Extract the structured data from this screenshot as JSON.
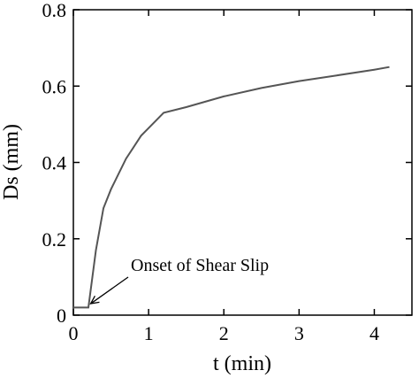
{
  "chart_data": {
    "type": "line",
    "title": "",
    "xlabel": "t (min)",
    "ylabel": "Ds (mm)",
    "xlim": [
      0,
      4.5
    ],
    "ylim": [
      0,
      0.8
    ],
    "xticks": [
      0,
      1,
      2,
      3,
      4
    ],
    "yticks": [
      0,
      0.2,
      0.4,
      0.6,
      0.8
    ],
    "xtick_labels": [
      "0",
      "1",
      "2",
      "3",
      "4"
    ],
    "ytick_labels": [
      "0",
      "0.2",
      "0.4",
      "0.6",
      "0.8"
    ],
    "grid": false,
    "series": [
      {
        "color": "#555555",
        "x": [
          0.0,
          0.2,
          0.3,
          0.4,
          0.5,
          0.6,
          0.7,
          0.8,
          0.9,
          1.0,
          1.1,
          1.2,
          1.5,
          2.0,
          2.5,
          3.0,
          3.5,
          4.0,
          4.2
        ],
        "y": [
          0.02,
          0.02,
          0.17,
          0.28,
          0.33,
          0.37,
          0.41,
          0.44,
          0.47,
          0.49,
          0.51,
          0.53,
          0.545,
          0.573,
          0.595,
          0.613,
          0.628,
          0.643,
          0.65
        ]
      }
    ],
    "annotations": [
      {
        "text": "Onset of Shear Slip",
        "arrow_to": [
          0.23,
          0.03
        ]
      }
    ]
  }
}
